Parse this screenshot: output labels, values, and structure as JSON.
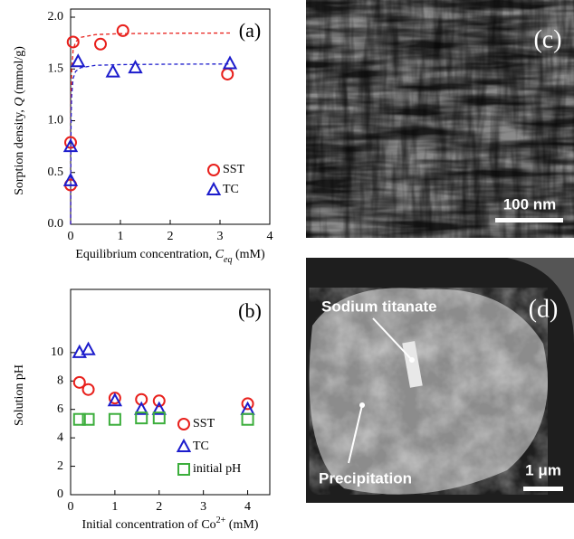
{
  "chart_data": [
    {
      "type": "scatter",
      "annotation": "(a)",
      "xlabel": [
        {
          "text": "Equilibrium concentration, "
        },
        {
          "text": "C",
          "style": "italic"
        },
        {
          "text": "eq",
          "style": "italic-sub"
        },
        {
          "text": " (mM)"
        }
      ],
      "ylabel": [
        {
          "text": "Sorption density, "
        },
        {
          "text": "Q",
          "style": "italic"
        },
        {
          "text": " (mmol/g)"
        }
      ],
      "xlim": [
        0,
        4
      ],
      "xticks": [
        0,
        1,
        2,
        3,
        4
      ],
      "ylim": [
        0,
        2
      ],
      "yticks": [
        {
          "value": 0,
          "label": "0.0"
        },
        0.5,
        {
          "value": 1,
          "label": "1.0"
        },
        1.5,
        {
          "value": 2,
          "label": "2.0"
        }
      ],
      "legend": "lower right",
      "series": [
        {
          "name": "SST",
          "color": "#e8201c",
          "marker": "circle",
          "x": [
            0,
            0,
            0.05,
            0.6,
            1.05,
            3.15
          ],
          "values": [
            0.38,
            0.79,
            1.76,
            1.74,
            1.87,
            1.45
          ]
        },
        {
          "name": "TC",
          "color": "#1c1ccc",
          "marker": "triangle",
          "x": [
            0,
            0,
            0.15,
            0.85,
            1.3,
            3.2
          ],
          "values": [
            0.42,
            0.75,
            1.57,
            1.47,
            1.51,
            1.55
          ]
        }
      ],
      "fits": [
        {
          "color": "#e8201c",
          "line_style": "dashed",
          "x": [
            0,
            0.005,
            0.01,
            0.02,
            0.05,
            0.1,
            0.2,
            0.5,
            1,
            2,
            3.2
          ],
          "values": [
            0,
            0.925,
            1.233,
            1.48,
            1.682,
            1.762,
            1.805,
            1.832,
            1.841,
            1.845,
            1.847
          ]
        },
        {
          "color": "#1c1ccc",
          "line_style": "dashed",
          "x": [
            0,
            0.005,
            0.01,
            0.02,
            0.05,
            0.1,
            0.2,
            0.5,
            1,
            2,
            3.2
          ],
          "values": [
            0,
            0.775,
            1.033,
            1.24,
            1.409,
            1.476,
            1.512,
            1.535,
            1.542,
            1.546,
            1.548
          ]
        }
      ]
    },
    {
      "type": "scatter",
      "annotation": "(b)",
      "xlabel": [
        {
          "text": "Initial concentration of Co"
        },
        {
          "text": "2+",
          "style": "sup"
        },
        {
          "text": "  (mM)"
        }
      ],
      "ylabel": [
        {
          "text": "Solution pH"
        }
      ],
      "xlim": [
        0,
        4.5
      ],
      "xticks": [
        0,
        1,
        2,
        3,
        4
      ],
      "ylim": [
        0,
        14
      ],
      "yticks": [
        0,
        2,
        4,
        6,
        8,
        10
      ],
      "legend": "lower right",
      "series": [
        {
          "name": "SST",
          "color": "#e8201c",
          "marker": "circle",
          "x": [
            0.2,
            0.4,
            1,
            1.6,
            2,
            4
          ],
          "values": [
            7.9,
            7.4,
            6.8,
            6.7,
            6.6,
            6.4
          ]
        },
        {
          "name": "TC",
          "color": "#1c1ccc",
          "marker": "triangle",
          "x": [
            0.2,
            0.4,
            1,
            1.6,
            2,
            4
          ],
          "values": [
            10.0,
            10.2,
            6.6,
            6.0,
            6.0,
            6.0
          ]
        },
        {
          "name": "initial pH",
          "color": "#3cae3c",
          "marker": "square",
          "x": [
            0.2,
            0.4,
            1,
            1.6,
            2,
            4
          ],
          "values": [
            5.3,
            5.3,
            5.3,
            5.4,
            5.4,
            5.3
          ]
        }
      ]
    }
  ],
  "images": [
    {
      "label": "(c)",
      "scale_bar": "100 nm"
    },
    {
      "label": "(d)",
      "annotations": [
        "Sodium titanate",
        "Precipitation"
      ],
      "scale_bar": "1 μm"
    }
  ]
}
